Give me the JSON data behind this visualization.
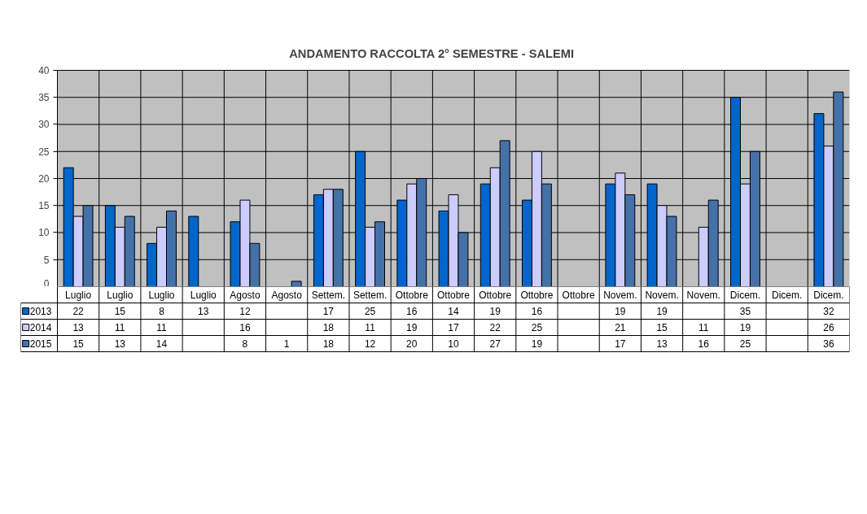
{
  "chart_data": {
    "type": "bar",
    "title": "ANDAMENTO RACCOLTA 2° SEMESTRE  -  SALEMI",
    "categories": [
      "Luglio",
      "Luglio",
      "Luglio",
      "Luglio",
      "Agosto",
      "Agosto",
      "Settem.",
      "Settem.",
      "Ottobre",
      "Ottobre",
      "Ottobre",
      "Ottobre",
      "Ottobre",
      "Novem.",
      "Novem.",
      "Novem.",
      "Dicem.",
      "Dicem.",
      "Dicem."
    ],
    "series": [
      {
        "name": "2013",
        "color": "#0066cc",
        "values": [
          22,
          15,
          8,
          13,
          12,
          null,
          17,
          25,
          16,
          14,
          19,
          16,
          null,
          19,
          19,
          null,
          35,
          null,
          32
        ]
      },
      {
        "name": "2014",
        "color": "#ccccff",
        "values": [
          13,
          11,
          11,
          null,
          16,
          null,
          18,
          11,
          19,
          17,
          22,
          25,
          null,
          21,
          15,
          11,
          19,
          null,
          26
        ]
      },
      {
        "name": "2015",
        "color": "#4472a8",
        "values": [
          15,
          13,
          14,
          null,
          8,
          1,
          18,
          12,
          20,
          10,
          27,
          19,
          null,
          17,
          13,
          16,
          25,
          null,
          36
        ]
      }
    ],
    "ylim": [
      0,
      40
    ],
    "yticks": [
      0,
      5,
      10,
      15,
      20,
      25,
      30,
      35,
      40
    ],
    "grid": true,
    "legend": "bottom left",
    "data_labels": true
  }
}
